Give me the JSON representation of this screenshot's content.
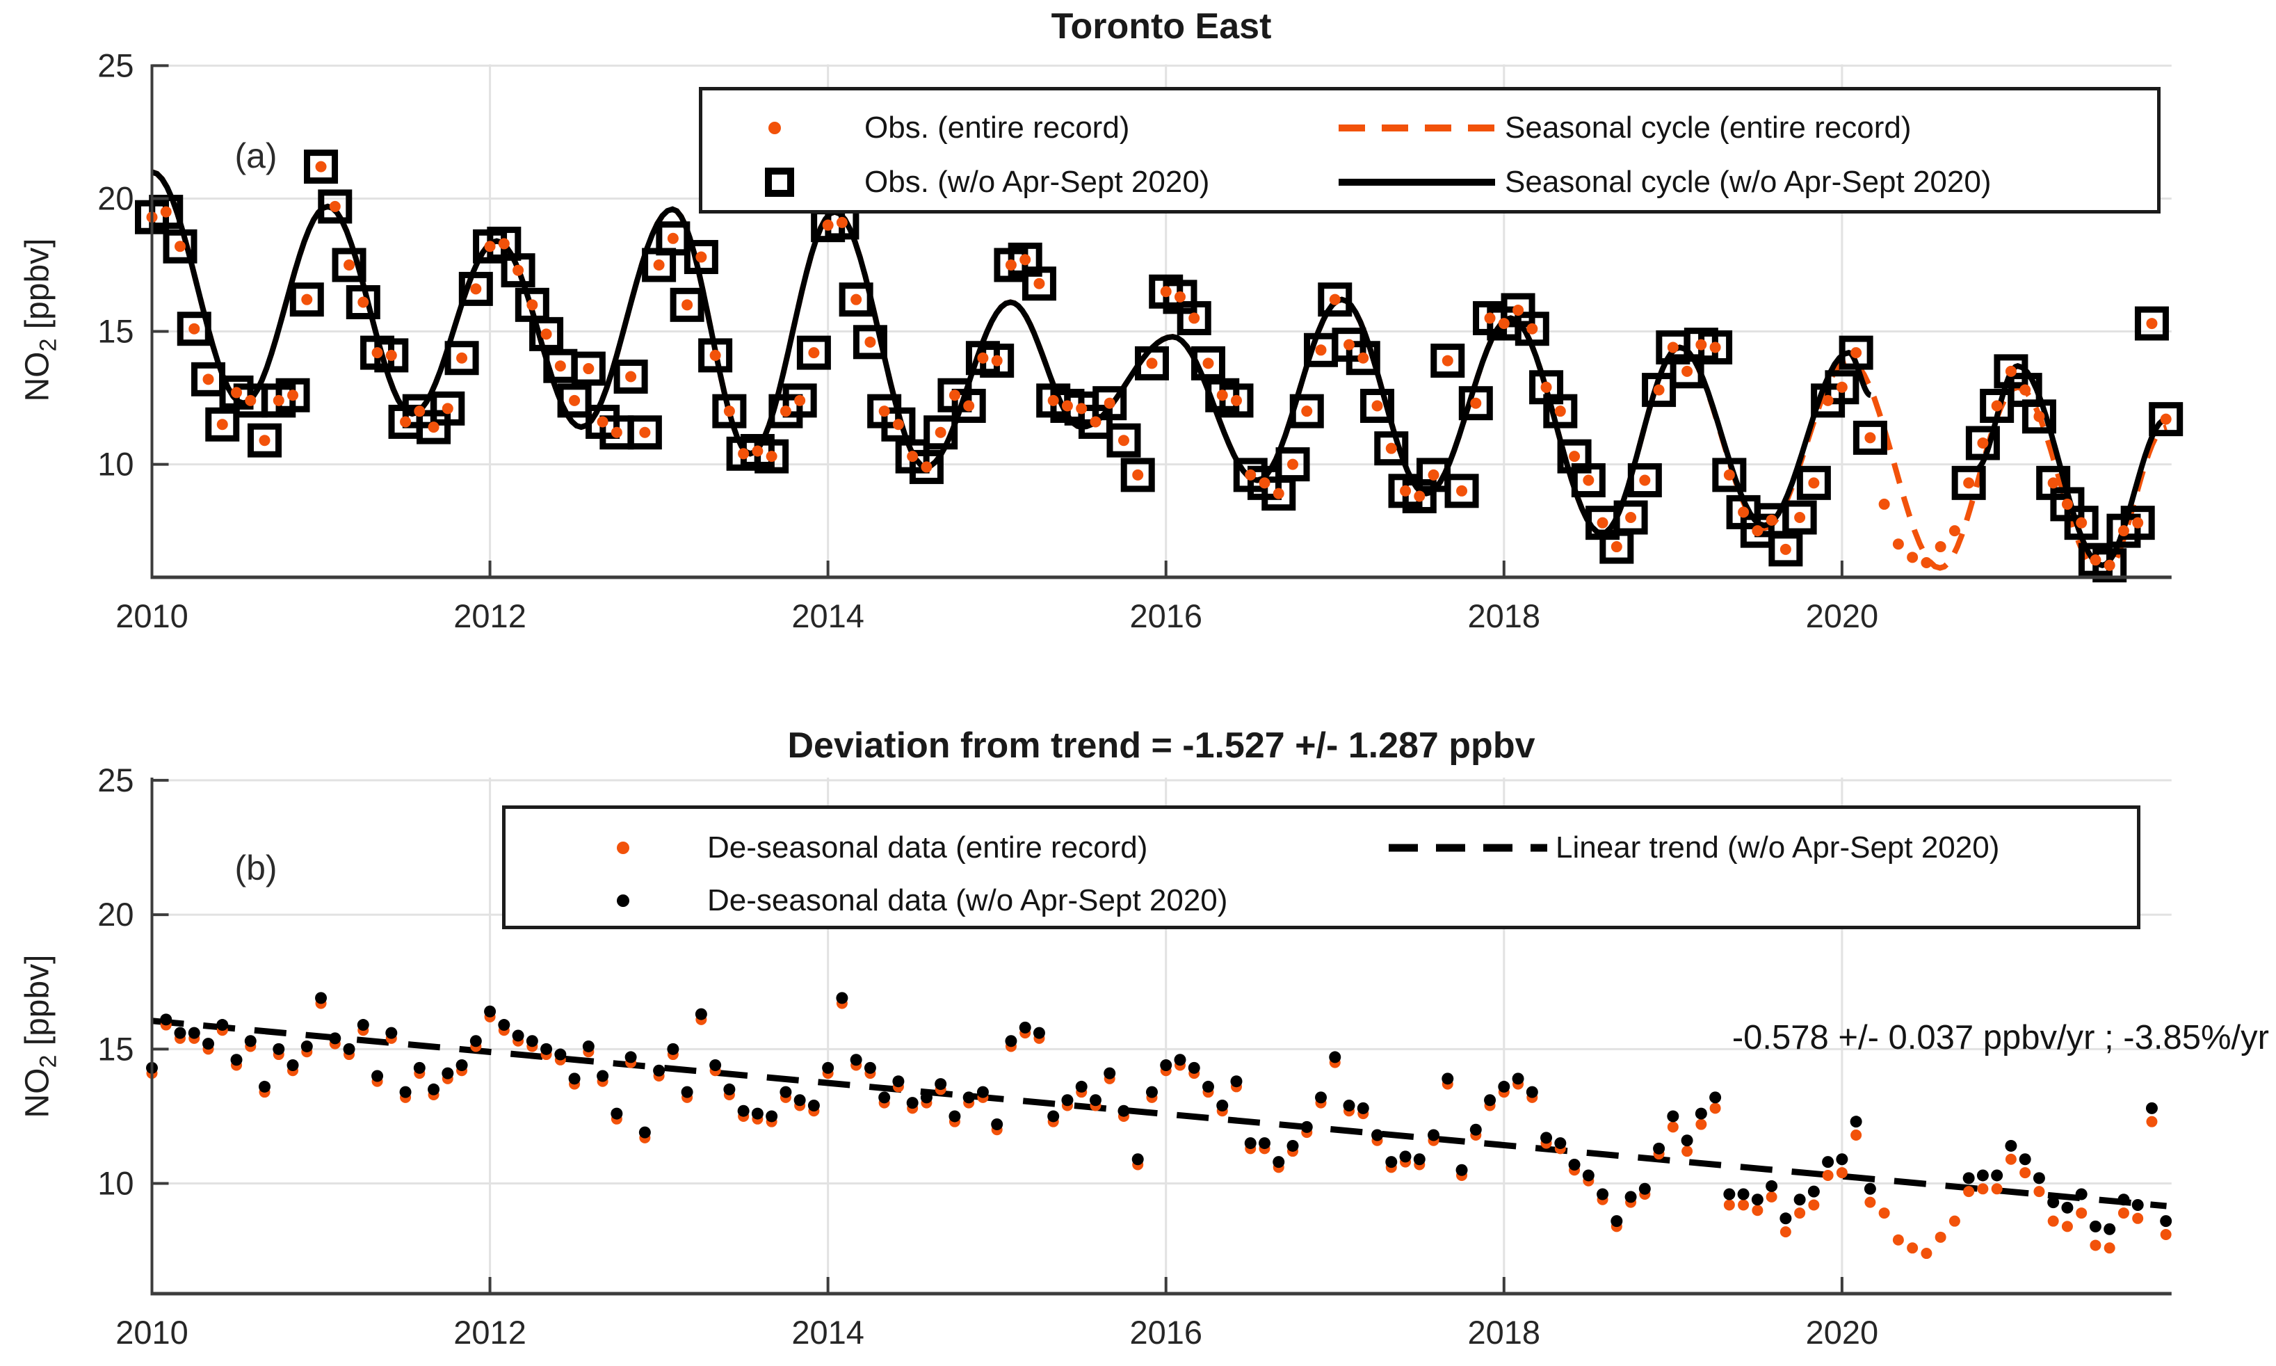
{
  "colors": {
    "orange": "#F2520A",
    "black": "#000000",
    "grid": "#E2E2E2",
    "axis": "#3C3C3C",
    "tick_label": "#262626"
  },
  "panel_a": {
    "panel_label": "(a)",
    "ylabel": {
      "main": "NO",
      "sub": "2",
      "rest": " [ppbv]"
    },
    "legend": {
      "items": [
        {
          "label": "Obs. (entire record)",
          "marker": "orange-dot"
        },
        {
          "label": "Obs. (w/o Apr-Sept 2020)",
          "marker": "black-open-square"
        },
        {
          "label": "Seasonal cycle (entire record)",
          "marker": "orange-dashed-line"
        },
        {
          "label": "Seasonal cycle (w/o Apr-Sept 2020)",
          "marker": "black-solid-line"
        }
      ]
    }
  },
  "panel_b": {
    "panel_label": "(b)",
    "ylabel": {
      "main": "NO",
      "sub": "2",
      "rest": " [ppbv]"
    },
    "legend": {
      "items": [
        {
          "label": "De-seasonal data (entire record)",
          "marker": "orange-dot"
        },
        {
          "label": "De-seasonal data (w/o Apr-Sept 2020)",
          "marker": "black-dot"
        },
        {
          "label": "Linear trend (w/o Apr-Sept 2020)",
          "marker": "black-dashed-line"
        }
      ]
    },
    "annotation": "-0.578 +/- 0.037 ppbv/yr ; -3.85%/yr"
  },
  "chart_data": [
    {
      "type": "scatter",
      "title": "Toronto East",
      "xlabel": "",
      "ylabel": "NO2 [ppbv]",
      "xlim": [
        2010,
        2021.95
      ],
      "ylim": [
        5.75,
        25.05
      ],
      "xticks": [
        2010,
        2012,
        2014,
        2016,
        2018,
        2020
      ],
      "yticks": [
        10,
        15,
        20,
        25
      ],
      "grid": true,
      "legend_position": "top",
      "months_start": 2010.0,
      "obs_monthly": [
        19.3,
        19.5,
        18.2,
        15.1,
        13.2,
        11.5,
        12.7,
        12.4,
        10.9,
        12.4,
        12.6,
        16.2,
        21.2,
        19.7,
        17.5,
        16.1,
        14.2,
        14.1,
        11.6,
        12.0,
        11.4,
        12.1,
        14.0,
        16.6,
        18.2,
        18.3,
        17.3,
        16.0,
        14.9,
        13.7,
        12.4,
        13.6,
        11.6,
        11.2,
        13.3,
        11.2,
        17.5,
        18.5,
        16.0,
        17.8,
        14.1,
        12.0,
        10.4,
        10.5,
        10.3,
        12.0,
        12.4,
        14.2,
        19.0,
        19.1,
        16.2,
        14.6,
        12.0,
        11.5,
        10.3,
        9.9,
        11.2,
        12.6,
        12.2,
        14.0,
        13.9,
        17.5,
        17.7,
        16.8,
        12.4,
        12.2,
        12.1,
        11.6,
        12.3,
        10.9,
        9.6,
        13.8,
        16.5,
        16.3,
        15.5,
        13.8,
        12.6,
        12.4,
        9.6,
        9.3,
        8.9,
        10.0,
        12.0,
        14.3,
        16.2,
        14.5,
        14.0,
        12.2,
        10.6,
        9.0,
        8.8,
        9.6,
        13.9,
        9.0,
        12.3,
        15.5,
        15.3,
        15.8,
        15.1,
        12.9,
        12.0,
        10.3,
        9.4,
        7.8,
        6.9,
        8.0,
        9.4,
        12.8,
        14.4,
        13.5,
        14.5,
        14.4,
        9.6,
        8.2,
        7.5,
        7.9,
        6.8,
        8.0,
        9.3,
        12.4,
        12.9,
        14.2,
        11.0,
        8.5,
        7.0,
        6.5,
        6.3,
        6.9,
        7.5,
        9.3,
        10.8,
        12.2,
        13.5,
        12.8,
        11.8,
        9.3,
        8.5,
        7.8,
        6.4,
        6.2,
        7.5,
        7.8,
        15.3,
        11.7
      ],
      "excluded_index_range": [
        123,
        128
      ],
      "seasonal_cycle_excl_segments": [
        [
          [
            2010.0,
            21.0
          ],
          [
            2010.54,
            12.3
          ],
          [
            2011.04,
            19.7
          ],
          [
            2011.54,
            11.9
          ],
          [
            2012.04,
            18.4
          ],
          [
            2012.54,
            11.4
          ],
          [
            2013.08,
            19.6
          ],
          [
            2013.54,
            10.4
          ],
          [
            2014.04,
            19.5
          ],
          [
            2014.58,
            9.9
          ],
          [
            2015.08,
            16.1
          ],
          [
            2015.5,
            11.4
          ],
          [
            2016.04,
            14.8
          ],
          [
            2016.54,
            9.4
          ],
          [
            2017.04,
            16.2
          ],
          [
            2017.54,
            8.9
          ],
          [
            2018.04,
            15.5
          ],
          [
            2018.58,
            7.4
          ],
          [
            2019.04,
            14.4
          ],
          [
            2019.54,
            7.7
          ],
          [
            2020.04,
            14.2
          ],
          [
            2020.17,
            12.6
          ]
        ],
        [
          [
            2020.79,
            9.8
          ],
          [
            2021.04,
            13.7
          ],
          [
            2021.54,
            6.2
          ],
          [
            2021.92,
            11.7
          ]
        ]
      ],
      "seasonal_cycle_all_anchors": [
        [
          2010.0,
          21.0
        ],
        [
          2010.54,
          12.3
        ],
        [
          2011.04,
          19.7
        ],
        [
          2011.54,
          11.9
        ],
        [
          2012.04,
          18.4
        ],
        [
          2012.54,
          11.4
        ],
        [
          2013.08,
          19.6
        ],
        [
          2013.54,
          10.4
        ],
        [
          2014.04,
          19.5
        ],
        [
          2014.58,
          9.9
        ],
        [
          2015.08,
          16.1
        ],
        [
          2015.5,
          11.4
        ],
        [
          2016.04,
          14.8
        ],
        [
          2016.54,
          9.4
        ],
        [
          2017.04,
          16.2
        ],
        [
          2017.54,
          8.9
        ],
        [
          2018.04,
          15.5
        ],
        [
          2018.58,
          7.4
        ],
        [
          2019.04,
          14.4
        ],
        [
          2019.54,
          7.6
        ],
        [
          2020.04,
          13.9
        ],
        [
          2020.58,
          6.1
        ],
        [
          2021.04,
          12.9
        ],
        [
          2021.54,
          5.8
        ],
        [
          2021.92,
          11.4
        ]
      ]
    },
    {
      "type": "scatter",
      "title": "Deviation from trend = -1.527 +/- 1.287 ppbv",
      "xlabel": "",
      "ylabel": "NO2 [ppbv]",
      "xlim": [
        2010,
        2021.95
      ],
      "ylim": [
        5.9,
        25.1
      ],
      "xticks": [
        2010,
        2012,
        2014,
        2016,
        2018,
        2020
      ],
      "yticks": [
        10,
        15,
        20,
        25
      ],
      "grid": true,
      "months_start": 2010.0,
      "deseasonal_excl_monthly": [
        14.3,
        16.1,
        15.6,
        15.6,
        15.2,
        15.9,
        14.6,
        15.3,
        13.6,
        15.0,
        14.4,
        15.1,
        16.9,
        15.4,
        15.0,
        15.9,
        14.0,
        15.6,
        13.4,
        14.3,
        13.5,
        14.1,
        14.4,
        15.3,
        16.4,
        15.9,
        15.5,
        15.3,
        15.0,
        14.8,
        13.9,
        15.1,
        14.0,
        12.6,
        14.7,
        11.9,
        14.2,
        15.0,
        13.4,
        16.3,
        14.4,
        13.5,
        12.7,
        12.6,
        12.5,
        13.4,
        13.1,
        12.9,
        14.3,
        16.9,
        14.6,
        14.3,
        13.2,
        13.8,
        13.0,
        13.2,
        13.7,
        12.5,
        13.2,
        13.4,
        12.2,
        15.3,
        15.8,
        15.6,
        12.5,
        13.1,
        13.6,
        13.1,
        14.1,
        12.7,
        10.9,
        13.4,
        14.4,
        14.6,
        14.3,
        13.6,
        12.9,
        13.8,
        11.5,
        11.5,
        10.8,
        11.4,
        12.1,
        13.2,
        14.7,
        12.9,
        12.8,
        11.8,
        10.8,
        11.0,
        10.9,
        11.8,
        13.9,
        10.5,
        12.0,
        13.1,
        13.6,
        13.9,
        13.4,
        11.7,
        11.5,
        10.7,
        10.3,
        9.6,
        8.6,
        9.5,
        9.8,
        11.3,
        12.5,
        11.6,
        12.6,
        13.2,
        9.6,
        9.6,
        9.4,
        9.9,
        8.7,
        9.4,
        9.7,
        10.8,
        10.9,
        12.3,
        9.8,
        null,
        null,
        null,
        null,
        null,
        null,
        10.2,
        10.3,
        10.3,
        11.4,
        10.9,
        10.2,
        9.3,
        9.1,
        9.6,
        8.4,
        8.3,
        9.4,
        9.2,
        12.8,
        8.6
      ],
      "deseasonal_all_monthly": [
        14.1,
        15.9,
        15.4,
        15.4,
        15.0,
        15.7,
        14.4,
        15.1,
        13.4,
        14.8,
        14.2,
        14.9,
        16.7,
        15.2,
        14.8,
        15.7,
        13.8,
        15.4,
        13.2,
        14.1,
        13.3,
        13.9,
        14.2,
        15.1,
        16.2,
        15.7,
        15.3,
        15.1,
        14.8,
        14.6,
        13.7,
        14.9,
        13.8,
        12.4,
        14.5,
        11.7,
        14.0,
        14.8,
        13.2,
        16.1,
        14.2,
        13.3,
        12.5,
        12.4,
        12.3,
        13.2,
        12.9,
        12.7,
        14.1,
        16.7,
        14.4,
        14.1,
        13.0,
        13.6,
        12.8,
        13.0,
        13.5,
        12.3,
        13.0,
        13.2,
        12.0,
        15.1,
        15.6,
        15.4,
        12.3,
        12.9,
        13.4,
        12.9,
        13.9,
        12.5,
        10.7,
        13.2,
        14.2,
        14.4,
        14.1,
        13.4,
        12.7,
        13.6,
        11.3,
        11.3,
        10.6,
        11.2,
        11.9,
        13.0,
        14.5,
        12.7,
        12.6,
        11.6,
        10.6,
        10.8,
        10.7,
        11.6,
        13.7,
        10.3,
        11.8,
        12.9,
        13.4,
        13.7,
        13.2,
        11.5,
        11.3,
        10.5,
        10.1,
        9.4,
        8.4,
        9.3,
        9.6,
        11.1,
        12.1,
        11.2,
        12.2,
        12.8,
        9.2,
        9.2,
        9.0,
        9.5,
        8.2,
        8.9,
        9.2,
        10.3,
        10.4,
        11.8,
        9.3,
        8.9,
        7.9,
        7.6,
        7.4,
        8.0,
        8.6,
        9.7,
        9.8,
        9.8,
        10.9,
        10.4,
        9.7,
        8.6,
        8.4,
        8.9,
        7.7,
        7.6,
        8.9,
        8.7,
        12.3,
        8.1
      ],
      "linear_trend": [
        [
          2010.0,
          16.05
        ],
        [
          2021.92,
          9.16
        ]
      ]
    }
  ]
}
